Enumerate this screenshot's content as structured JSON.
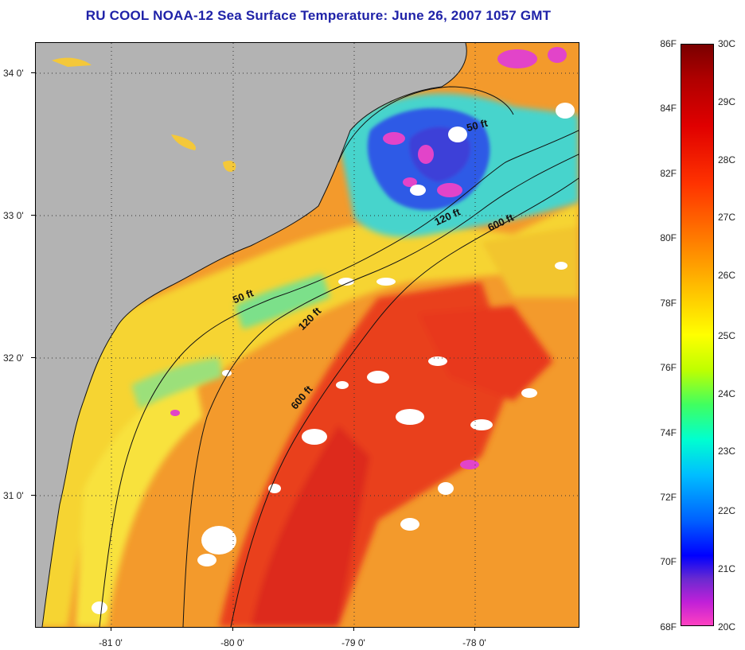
{
  "title": "RU COOL  NOAA-12  Sea Surface Temperature:  June 26, 2007 1057 GMT",
  "map": {
    "lat_labels": [
      "34 0'",
      "33 0'",
      "32 0'",
      "31 0'"
    ],
    "lon_labels": [
      "-81 0'",
      "-80 0'",
      "-79 0'",
      "-78 0'"
    ],
    "contours": {
      "c50_north": "50 ft",
      "c120_north": "120 ft",
      "c600_north": "600 ft",
      "c50_south": "50 ft",
      "c120_south": "120 ft",
      "c600_south": "600 ft"
    },
    "colors": {
      "land": "#b3b3b3",
      "cloud": "#ffffff",
      "warm_water": "#f39a2c",
      "hot_water": "#e7321f",
      "mild_water": "#f6d431",
      "cool_water": "#3fd6d8",
      "cold_water": "#2f4fe6",
      "coldest_water": "#e244c9"
    }
  },
  "colorbar": {
    "fahrenheit_labels": [
      "86F",
      "84F",
      "82F",
      "80F",
      "78F",
      "76F",
      "74F",
      "72F",
      "70F",
      "68F"
    ],
    "celsius_labels": [
      "30C",
      "29C",
      "28C",
      "27C",
      "26C",
      "25C",
      "24C",
      "23C",
      "22C",
      "21C",
      "20C"
    ]
  }
}
